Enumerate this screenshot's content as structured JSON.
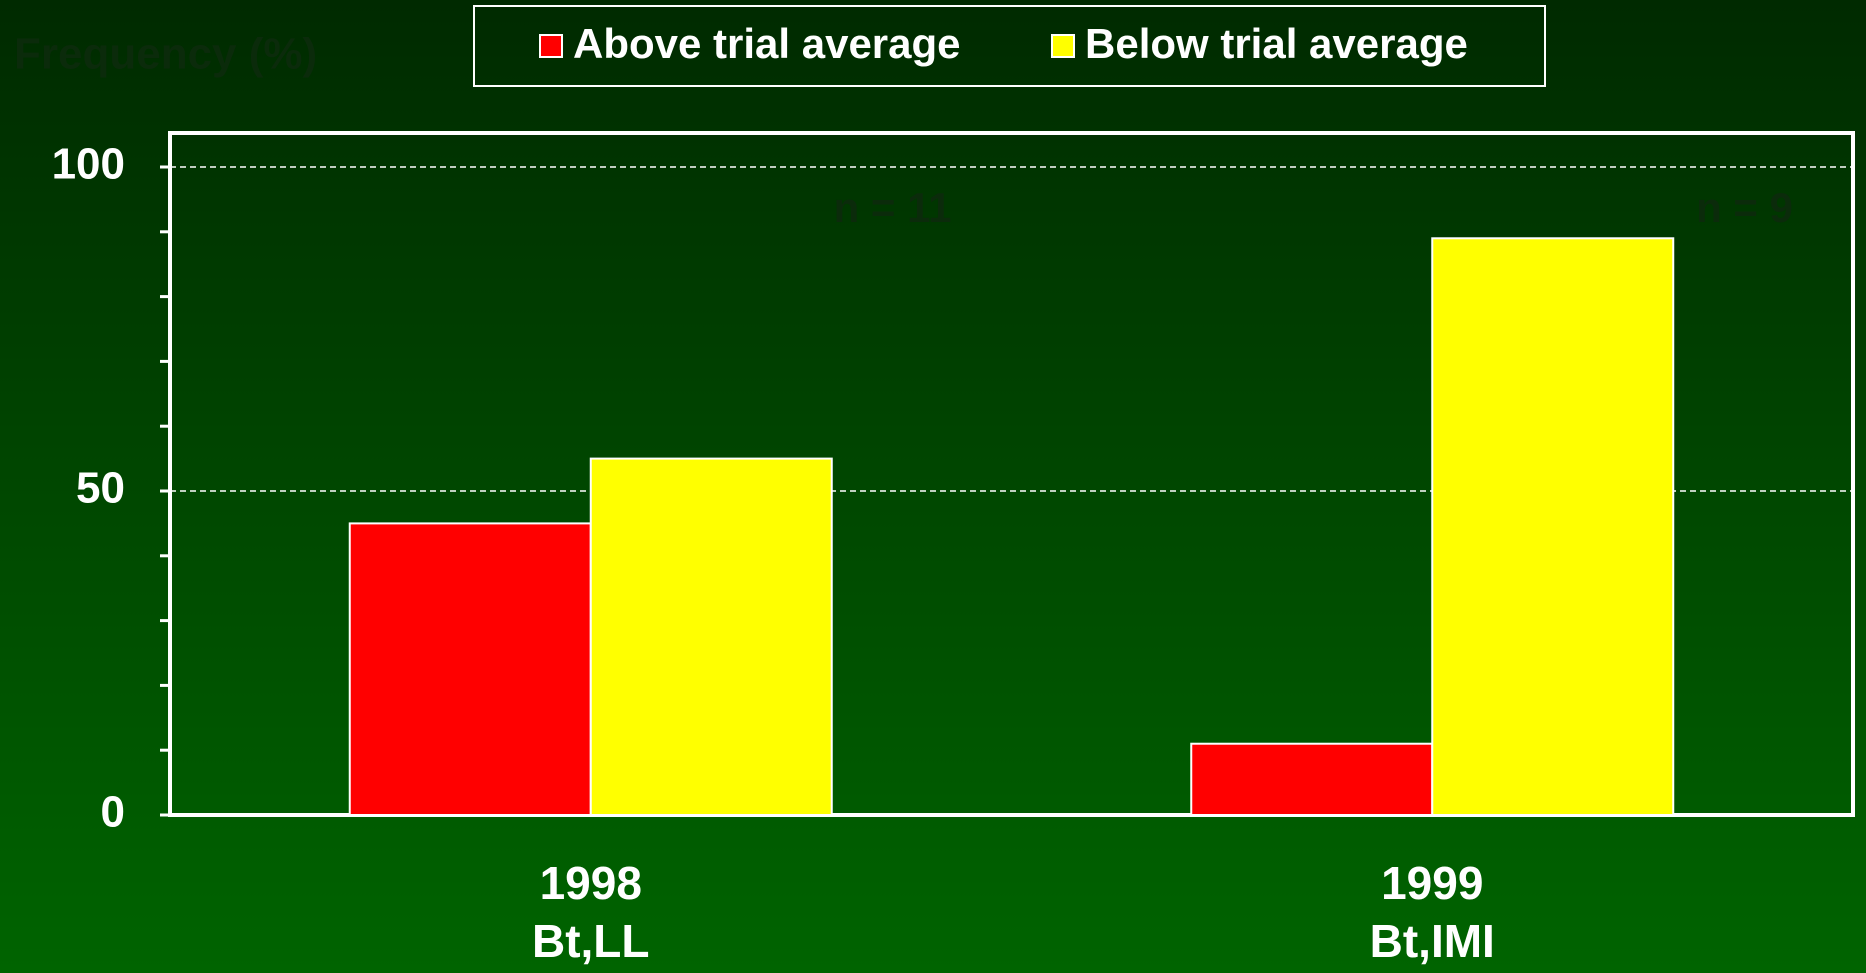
{
  "chart_data": {
    "type": "bar",
    "y_axis_label": "Frequency (%)",
    "categories": [
      "1998",
      "1999"
    ],
    "category_sublabels": [
      "Bt,LL",
      "Bt,IMI"
    ],
    "series": [
      {
        "name": "Above trial average",
        "color": "#ff0000",
        "values": [
          45,
          11
        ]
      },
      {
        "name": "Below trial average",
        "color": "#ffff00",
        "values": [
          55,
          89
        ]
      }
    ],
    "annotations": [
      "n = 11",
      "n = 9"
    ],
    "ylim": [
      0,
      100
    ],
    "yticks": [
      0,
      50,
      100
    ],
    "minor_yticks": [
      10,
      20,
      30,
      40,
      60,
      70,
      80,
      90
    ],
    "grid": true
  }
}
